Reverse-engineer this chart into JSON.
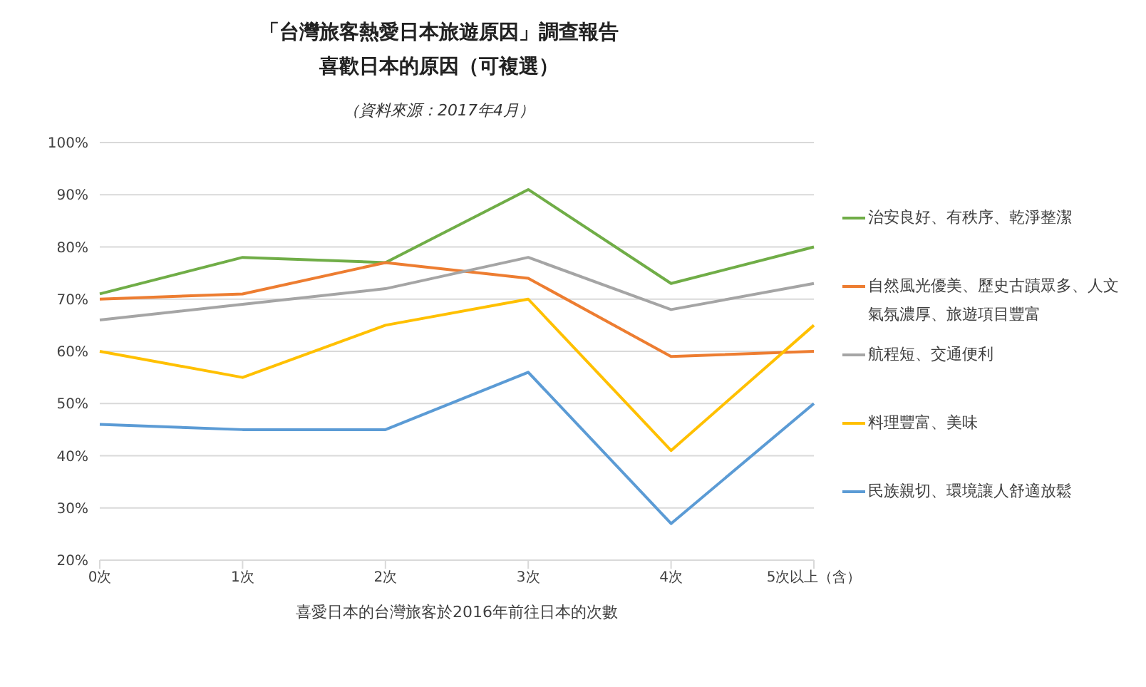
{
  "chart_data": {
    "type": "line",
    "title": "「台灣旅客熱愛日本旅遊原因」調查報告",
    "subtitle": "喜歡日本的原因（可複選）",
    "annotations": [
      "（資料來源：2017年4月）"
    ],
    "xlabel": "喜愛日本的台灣旅客於2016年前往日本的次數",
    "categories": [
      "0次",
      "1次",
      "2次",
      "3次",
      "4次",
      "5次以上（含）"
    ],
    "series": [
      {
        "name": "治安良好、有秩序、乾淨整潔",
        "color": "#70ad47",
        "values": [
          71,
          78,
          77,
          91,
          73,
          80
        ]
      },
      {
        "name": "自然風光優美、歷史古蹟眾多、人文氣氛濃厚、旅遊項目豐富",
        "color": "#ed7d31",
        "values": [
          70,
          71,
          77,
          74,
          59,
          60
        ]
      },
      {
        "name": "航程短、交通便利",
        "color": "#a5a5a5",
        "values": [
          66,
          69,
          72,
          78,
          68,
          73
        ]
      },
      {
        "name": "料理豐富、美味",
        "color": "#ffc000",
        "values": [
          60,
          55,
          65,
          70,
          41,
          65
        ]
      },
      {
        "name": "民族親切、環境讓人舒適放鬆",
        "color": "#5b9bd5",
        "values": [
          46,
          45,
          45,
          56,
          27,
          50
        ]
      }
    ],
    "ylim": [
      20,
      100
    ],
    "yticks": [
      {
        "value": 20,
        "label": "20%"
      },
      {
        "value": 30,
        "label": "30%"
      },
      {
        "value": 40,
        "label": "40%"
      },
      {
        "value": 50,
        "label": "50%"
      },
      {
        "value": 60,
        "label": "60%"
      },
      {
        "value": 70,
        "label": "70%"
      },
      {
        "value": 80,
        "label": "80%"
      },
      {
        "value": 90,
        "label": "90%"
      },
      {
        "value": 100,
        "label": "100%"
      }
    ],
    "grid": "y",
    "legend": "right",
    "marker": "none",
    "line_style": "solid"
  }
}
